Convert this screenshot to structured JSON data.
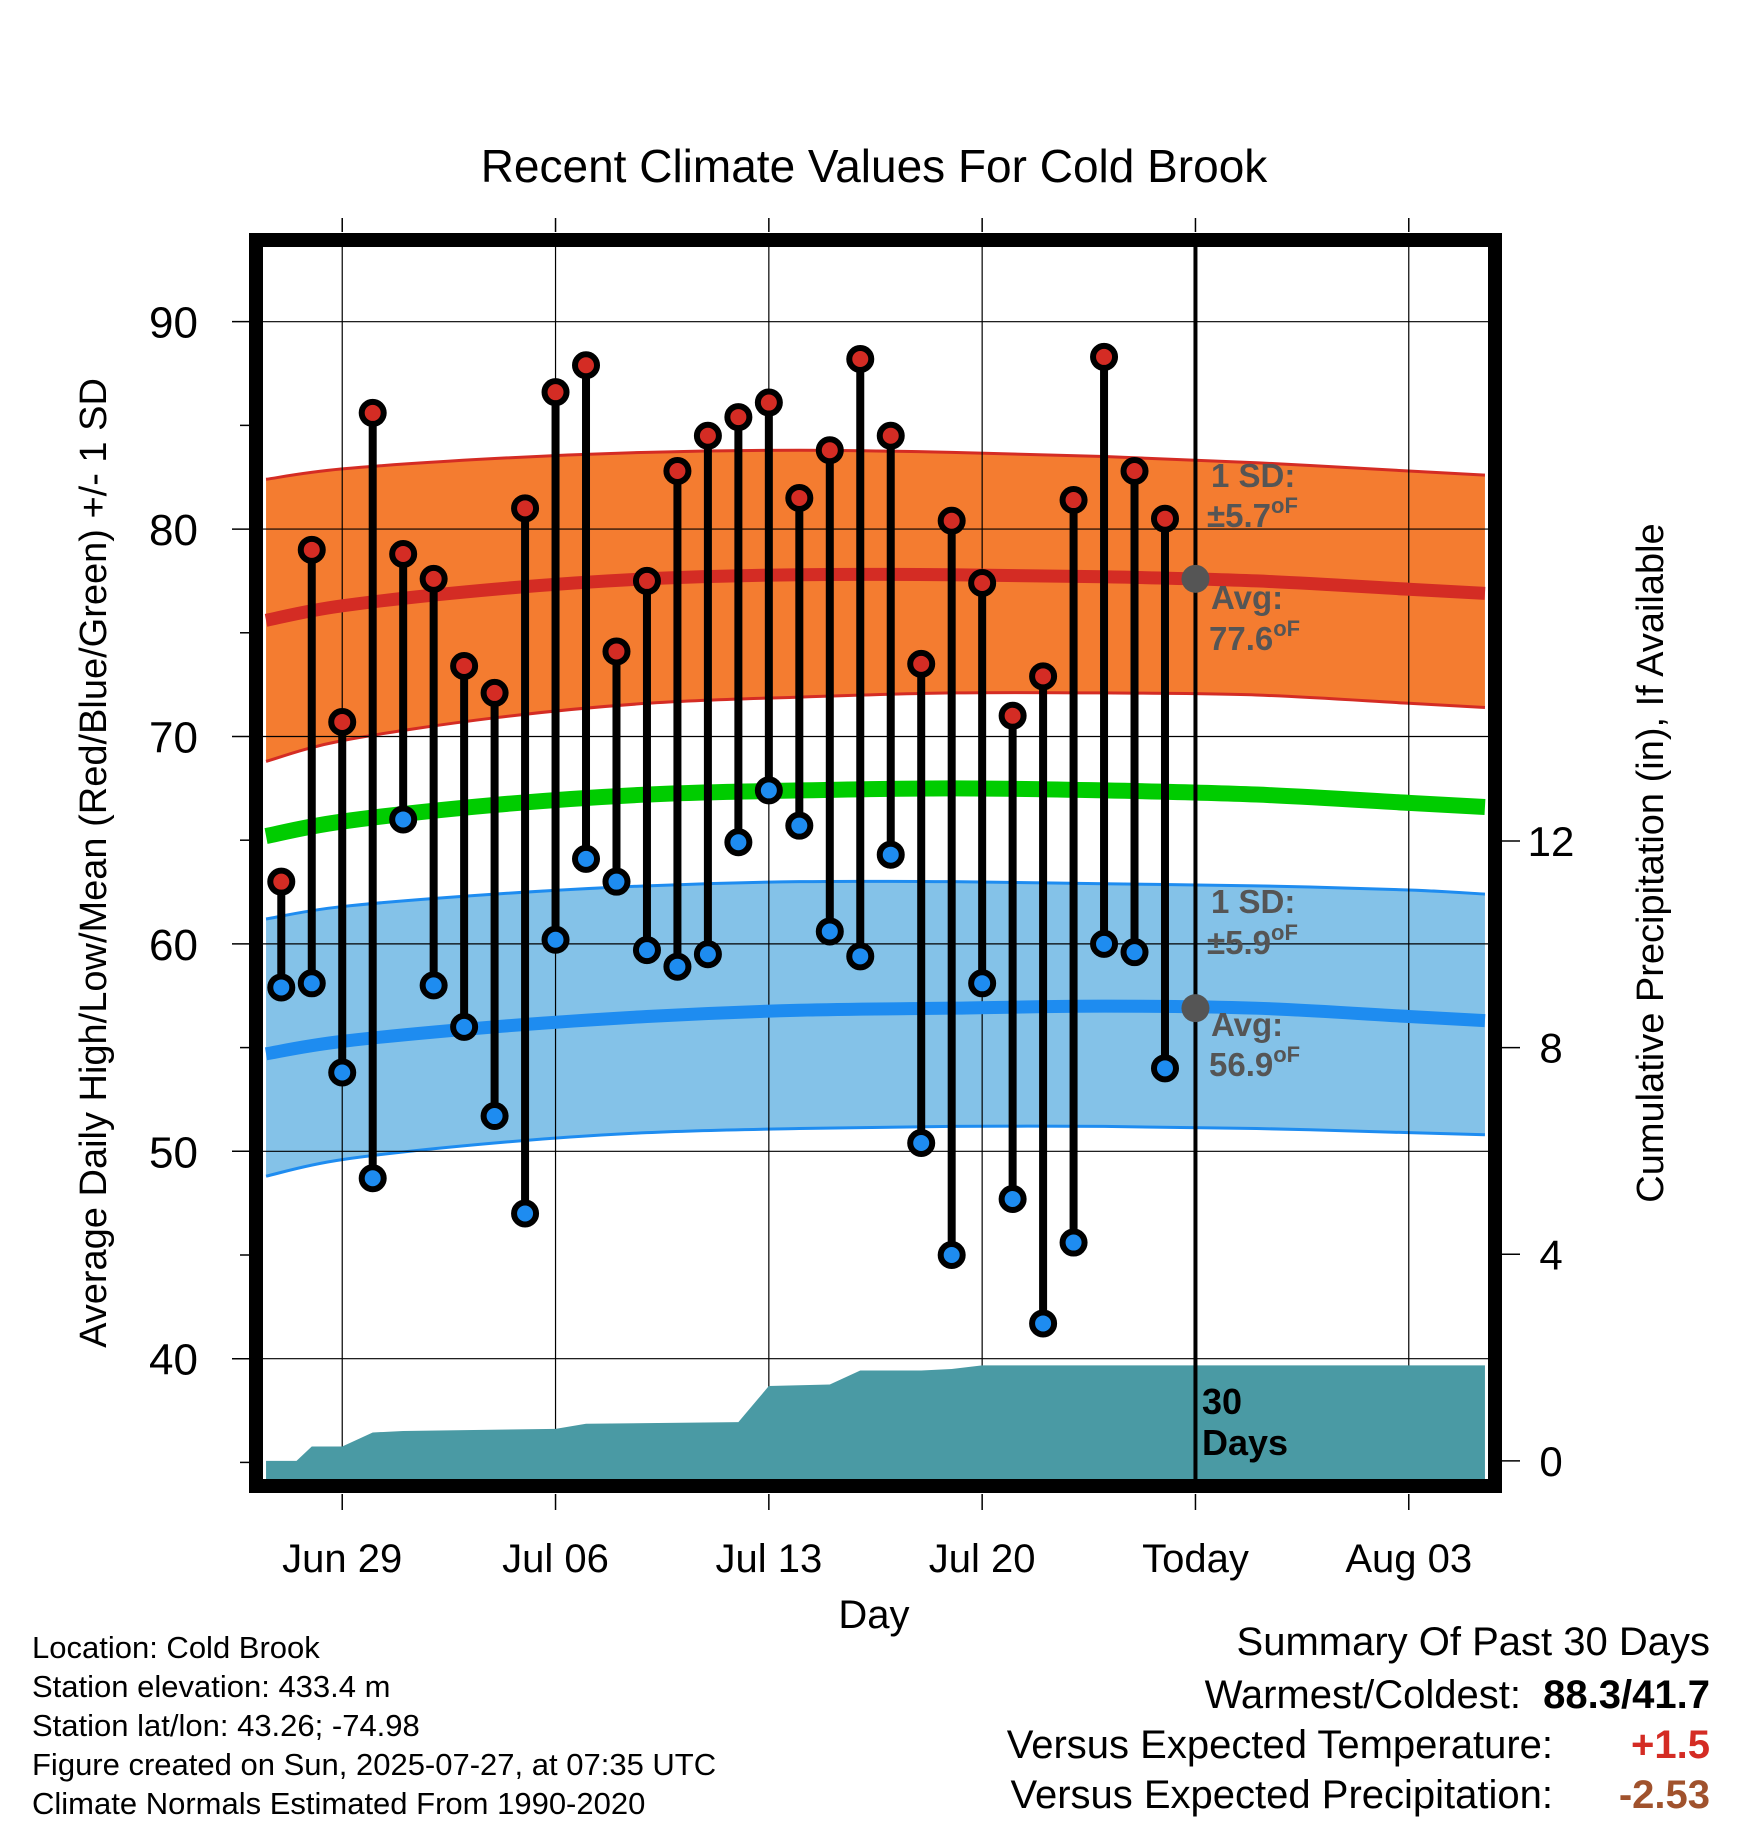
{
  "title": "Recent Climate Values For Cold Brook",
  "xlabel": "Day",
  "ylabel_left": "Average Daily High/Low/Mean (Red/Blue/Green) +/- 1 SD",
  "ylabel_right": "Cumulative Precipitation (in), If Available",
  "today_label": "30\nDays",
  "annotations": {
    "high_sd_label": "1 SD:",
    "high_sd_value": "±5.7",
    "high_sd_unit": "oF",
    "high_avg_label": "Avg:",
    "high_avg_value": "77.6",
    "high_avg_unit": "oF",
    "low_sd_label": "1 SD:",
    "low_sd_value": "±5.9",
    "low_sd_unit": "oF",
    "low_avg_label": "Avg:",
    "low_avg_value": "56.9",
    "low_avg_unit": "oF"
  },
  "footer": {
    "location": "Location: Cold Brook",
    "elevation": "Station elevation: 433.4 m",
    "latlon": "Station lat/lon: 43.26; -74.98",
    "created": "Figure created on Sun, 2025-07-27, at 07:35 UTC",
    "normals": "Climate Normals Estimated From 1990-2020"
  },
  "summary": {
    "heading": "Summary Of Past 30 Days",
    "warm_cold_label": "Warmest/Coldest:",
    "warm_cold_value": "88.3/41.7",
    "temp_label": "Versus Expected Temperature:",
    "temp_value": "+1.5",
    "precip_label": "Versus Expected Precipitation:",
    "precip_value": "-2.53"
  },
  "colors": {
    "high_band": "#f47c30",
    "high_line": "#d42c24",
    "low_band": "#84c2e8",
    "low_line": "#1e8cf0",
    "mean_line": "#00cc00",
    "precip": "#4a9aa4",
    "high_marker": "#d42c24",
    "low_marker": "#1e8cf0",
    "annotation": "#555555",
    "temp_anomaly": "#d42c24",
    "precip_anomaly": "#a0522d"
  },
  "chart_data": {
    "type": "line",
    "x_ticks": [
      "Jun 29",
      "Jul 06",
      "Jul 13",
      "Jul 20",
      "Today",
      "Aug 03"
    ],
    "x_tick_days": [
      0,
      7,
      14,
      21,
      28,
      35
    ],
    "y_ticks_left": [
      40,
      50,
      60,
      70,
      80,
      90
    ],
    "y_ticks_right": [
      0,
      4,
      8,
      12
    ],
    "ylim_left": [
      34.2,
      93.6
    ],
    "ylim_right": [
      -0.35,
      23.5
    ],
    "xlim": [
      -2.6,
      37.6
    ],
    "grid": true,
    "today_day": 28,
    "daily": {
      "days": [
        -2,
        -1,
        0,
        1,
        2,
        3,
        4,
        5,
        6,
        7,
        8,
        9,
        10,
        11,
        12,
        13,
        14,
        15,
        16,
        17,
        18,
        19,
        20,
        21,
        22,
        23,
        24,
        25,
        26,
        27
      ],
      "high": [
        63.0,
        79.0,
        70.7,
        85.6,
        78.8,
        77.6,
        73.4,
        72.1,
        81.0,
        86.6,
        87.9,
        74.1,
        77.5,
        82.8,
        84.5,
        85.4,
        86.1,
        81.5,
        83.8,
        88.2,
        84.5,
        73.5,
        80.4,
        77.4,
        71.0,
        72.9,
        81.4,
        88.3,
        82.8,
        80.5
      ],
      "low": [
        57.9,
        58.1,
        53.8,
        48.7,
        66.0,
        58.0,
        56.0,
        51.7,
        47.0,
        60.2,
        64.1,
        63.0,
        59.7,
        58.9,
        59.5,
        64.9,
        67.4,
        65.7,
        60.6,
        59.4,
        64.3,
        50.4,
        45.0,
        58.1,
        47.7,
        41.7,
        45.6,
        60.0,
        59.6,
        54.0
      ]
    },
    "normals": {
      "days": [
        -2.5,
        0,
        5,
        10,
        15,
        20,
        25,
        30,
        35,
        37.5
      ],
      "high_avg": [
        75.6,
        76.3,
        77.1,
        77.6,
        77.8,
        77.8,
        77.7,
        77.5,
        77.1,
        76.9
      ],
      "high_upper": [
        82.4,
        82.9,
        83.4,
        83.7,
        83.8,
        83.7,
        83.5,
        83.2,
        82.8,
        82.6
      ],
      "high_lower": [
        68.8,
        69.8,
        70.9,
        71.6,
        71.9,
        72.1,
        72.1,
        72.0,
        71.6,
        71.4
      ],
      "mean": [
        65.2,
        65.9,
        66.7,
        67.2,
        67.4,
        67.5,
        67.4,
        67.2,
        66.8,
        66.6
      ],
      "low_avg": [
        54.7,
        55.3,
        56.0,
        56.5,
        56.8,
        56.9,
        57.0,
        56.9,
        56.5,
        56.3
      ],
      "low_upper": [
        61.2,
        61.8,
        62.4,
        62.8,
        63.0,
        63.0,
        62.9,
        62.8,
        62.6,
        62.4
      ],
      "low_lower": [
        48.8,
        49.6,
        50.4,
        50.9,
        51.1,
        51.2,
        51.2,
        51.1,
        50.9,
        50.8
      ]
    },
    "precip_cumulative": {
      "days": [
        -2.5,
        -1.5,
        -1,
        0,
        1,
        2,
        7,
        8,
        13,
        14,
        16,
        17,
        18,
        19,
        20,
        21,
        28,
        37.5
      ],
      "values": [
        0,
        0,
        0.28,
        0.28,
        0.55,
        0.58,
        0.62,
        0.72,
        0.75,
        1.45,
        1.48,
        1.75,
        1.75,
        1.75,
        1.78,
        1.85,
        1.85,
        1.85
      ]
    }
  }
}
